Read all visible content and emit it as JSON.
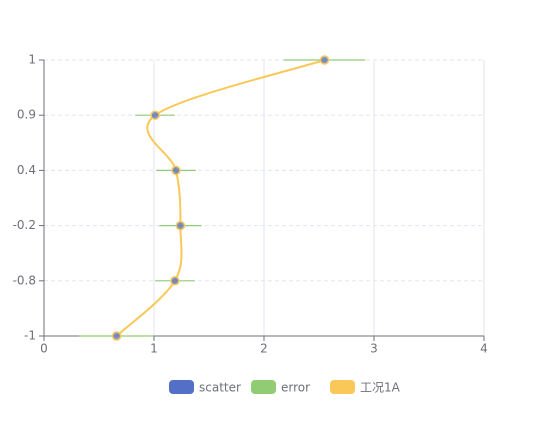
{
  "chart_data": {
    "type": "scatter-errorbar",
    "categories": [
      "-1",
      "-0.8",
      "-0.2",
      "0.4",
      "0.9",
      "1"
    ],
    "series": [
      {
        "name": "scatter",
        "color": "#5470c6",
        "values": [
          0.66,
          1.19,
          1.24,
          1.2,
          1.01,
          2.55
        ]
      },
      {
        "name": "error",
        "color": "#91cc75",
        "values": [
          0.34,
          0.18,
          0.19,
          0.18,
          0.18,
          0.37
        ]
      },
      {
        "name": "工况1A",
        "color": "#fac858",
        "values": [
          0.66,
          1.19,
          1.24,
          1.2,
          1.01,
          2.55
        ]
      }
    ],
    "xlim": [
      0,
      4
    ],
    "xticks": [
      0,
      1,
      2,
      3,
      4
    ],
    "grid": true
  }
}
